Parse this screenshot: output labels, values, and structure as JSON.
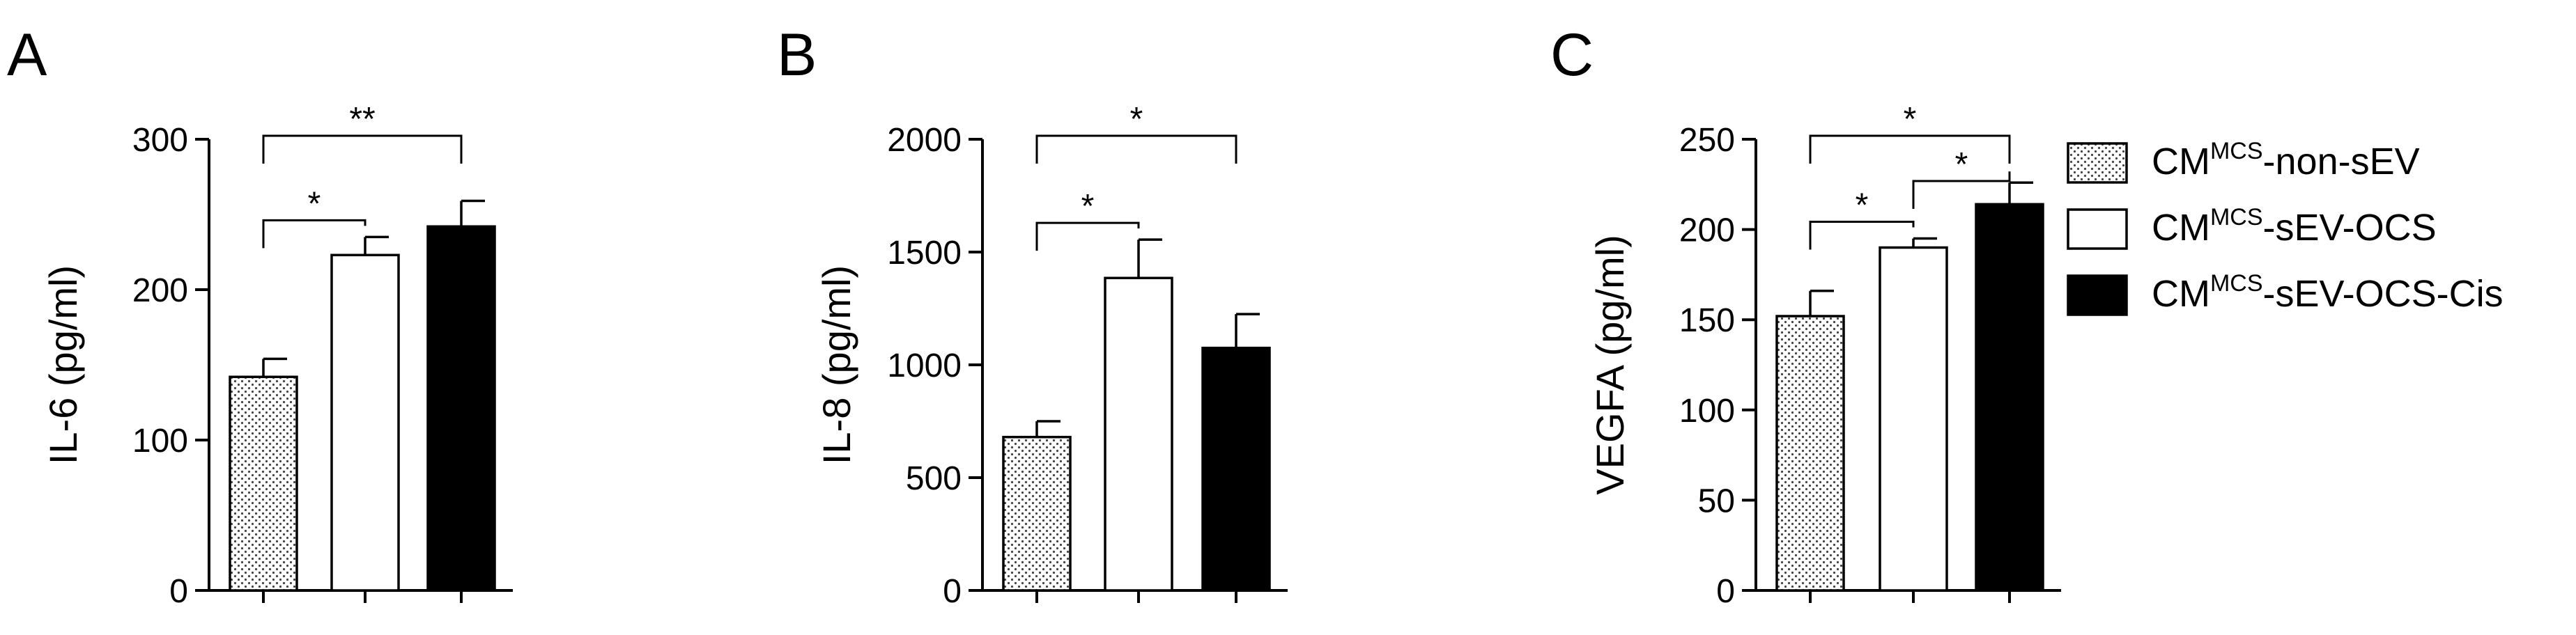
{
  "legend": {
    "placement": "right",
    "entries": [
      {
        "prefix": "CM",
        "sup": "MCS",
        "suffix": "-non-sEV",
        "pattern": "dotted"
      },
      {
        "prefix": "CM",
        "sup": "MCS",
        "suffix": "-sEV-OCS",
        "pattern": "white"
      },
      {
        "prefix": "CM",
        "sup": "MCS",
        "suffix": "-sEV-OCS-Cis",
        "pattern": "black"
      }
    ]
  },
  "chart_data": [
    {
      "type": "bar",
      "panel": "A",
      "ylabel": "IL-6 (pg/ml)",
      "ylim": [
        0,
        300
      ],
      "yticks": [
        0,
        100,
        200,
        300
      ],
      "values": [
        142,
        223,
        242
      ],
      "errors": [
        12,
        12,
        17
      ],
      "significance": [
        {
          "from": 0,
          "to": 1,
          "label": "*"
        },
        {
          "from": 0,
          "to": 2,
          "label": "**"
        }
      ]
    },
    {
      "type": "bar",
      "panel": "B",
      "ylabel": "IL-8 (pg/ml)",
      "ylim": [
        0,
        2000
      ],
      "yticks": [
        0,
        500,
        1000,
        1500,
        2000
      ],
      "values": [
        680,
        1385,
        1075
      ],
      "errors": [
        70,
        170,
        150
      ],
      "significance": [
        {
          "from": 0,
          "to": 1,
          "label": "*"
        },
        {
          "from": 0,
          "to": 2,
          "label": "*"
        }
      ]
    },
    {
      "type": "bar",
      "panel": "C",
      "ylabel": "VEGFA (pg/ml)",
      "ylim": [
        0,
        250
      ],
      "yticks": [
        0,
        50,
        100,
        150,
        200,
        250
      ],
      "values": [
        152,
        190,
        214
      ],
      "errors": [
        14,
        5,
        12
      ],
      "significance": [
        {
          "from": 0,
          "to": 1,
          "label": "*"
        },
        {
          "from": 1,
          "to": 2,
          "label": "*"
        },
        {
          "from": 0,
          "to": 2,
          "label": "*"
        }
      ]
    }
  ]
}
